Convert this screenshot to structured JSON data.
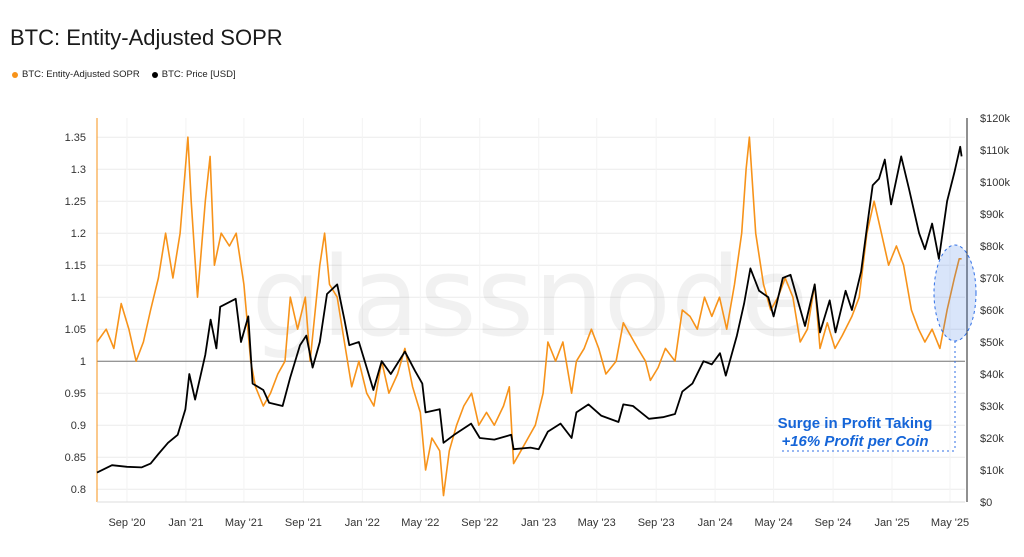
{
  "title": "BTC: Entity-Adjusted SOPR",
  "legend": [
    {
      "label": "BTC: Entity-Adjusted SOPR",
      "color": "#f7931a"
    },
    {
      "label": "BTC: Price [USD]",
      "color": "#000000"
    }
  ],
  "watermark": "glassnode",
  "annotation": {
    "line1": "Surge in Profit Taking",
    "line2": "+16% Profit per Coin",
    "color": "#1565d8"
  },
  "chart_data": {
    "type": "line",
    "xlim": [
      "2020-07-01",
      "2025-06-01"
    ],
    "x_ticks": [
      {
        "date": "2020-09-01",
        "label": "Sep '20"
      },
      {
        "date": "2021-01-01",
        "label": "Jan '21"
      },
      {
        "date": "2021-05-01",
        "label": "May '21"
      },
      {
        "date": "2021-09-01",
        "label": "Sep '21"
      },
      {
        "date": "2022-01-01",
        "label": "Jan '22"
      },
      {
        "date": "2022-05-01",
        "label": "May '22"
      },
      {
        "date": "2022-09-01",
        "label": "Sep '22"
      },
      {
        "date": "2023-01-01",
        "label": "Jan '23"
      },
      {
        "date": "2023-05-01",
        "label": "May '23"
      },
      {
        "date": "2023-09-01",
        "label": "Sep '23"
      },
      {
        "date": "2024-01-01",
        "label": "Jan '24"
      },
      {
        "date": "2024-05-01",
        "label": "May '24"
      },
      {
        "date": "2024-09-01",
        "label": "Sep '24"
      },
      {
        "date": "2025-01-01",
        "label": "Jan '25"
      },
      {
        "date": "2025-05-01",
        "label": "May '25"
      }
    ],
    "y_left": {
      "ylim": [
        0.78,
        1.38
      ],
      "ticks": [
        0.8,
        0.85,
        0.9,
        0.95,
        1,
        1.05,
        1.1,
        1.15,
        1.2,
        1.25,
        1.3,
        1.35
      ],
      "tick_labels": [
        "0.8",
        "0.85",
        "0.9",
        "0.95",
        "1",
        "1.05",
        "1.1",
        "1.15",
        "1.2",
        "1.25",
        "1.3",
        "1.35"
      ],
      "reference_line": 1
    },
    "y_right": {
      "ylim": [
        0,
        120000
      ],
      "ticks": [
        0,
        10000,
        20000,
        30000,
        40000,
        50000,
        60000,
        70000,
        80000,
        90000,
        100000,
        110000,
        120000
      ],
      "tick_labels": [
        "$0",
        "$10k",
        "$20k",
        "$30k",
        "$40k",
        "$50k",
        "$60k",
        "$70k",
        "$80k",
        "$90k",
        "$100k",
        "$110k",
        "$120k"
      ]
    },
    "series": [
      {
        "name": "BTC: Entity-Adjusted SOPR",
        "axis": "left",
        "color": "#f7931a",
        "points": [
          [
            "2020-07-01",
            1.03
          ],
          [
            "2020-07-20",
            1.05
          ],
          [
            "2020-08-05",
            1.02
          ],
          [
            "2020-08-20",
            1.09
          ],
          [
            "2020-09-05",
            1.05
          ],
          [
            "2020-09-20",
            1.0
          ],
          [
            "2020-10-05",
            1.03
          ],
          [
            "2020-10-20",
            1.08
          ],
          [
            "2020-11-05",
            1.13
          ],
          [
            "2020-11-20",
            1.2
          ],
          [
            "2020-12-05",
            1.13
          ],
          [
            "2020-12-20",
            1.2
          ],
          [
            "2021-01-05",
            1.35
          ],
          [
            "2021-01-12",
            1.25
          ],
          [
            "2021-01-25",
            1.1
          ],
          [
            "2021-02-10",
            1.25
          ],
          [
            "2021-02-20",
            1.32
          ],
          [
            "2021-03-01",
            1.15
          ],
          [
            "2021-03-15",
            1.2
          ],
          [
            "2021-04-01",
            1.18
          ],
          [
            "2021-04-15",
            1.2
          ],
          [
            "2021-05-01",
            1.12
          ],
          [
            "2021-05-15",
            1.0
          ],
          [
            "2021-05-25",
            0.96
          ],
          [
            "2021-06-10",
            0.93
          ],
          [
            "2021-06-25",
            0.95
          ],
          [
            "2021-07-10",
            0.98
          ],
          [
            "2021-07-25",
            1.0
          ],
          [
            "2021-08-05",
            1.1
          ],
          [
            "2021-08-20",
            1.05
          ],
          [
            "2021-09-05",
            1.1
          ],
          [
            "2021-09-15",
            1.0
          ],
          [
            "2021-10-05",
            1.15
          ],
          [
            "2021-10-15",
            1.2
          ],
          [
            "2021-10-25",
            1.12
          ],
          [
            "2021-11-10",
            1.1
          ],
          [
            "2021-11-25",
            1.03
          ],
          [
            "2021-12-10",
            0.96
          ],
          [
            "2021-12-25",
            1.0
          ],
          [
            "2022-01-10",
            0.95
          ],
          [
            "2022-01-25",
            0.93
          ],
          [
            "2022-02-10",
            1.0
          ],
          [
            "2022-02-25",
            0.95
          ],
          [
            "2022-03-15",
            0.98
          ],
          [
            "2022-03-30",
            1.02
          ],
          [
            "2022-04-15",
            0.96
          ],
          [
            "2022-05-01",
            0.92
          ],
          [
            "2022-05-12",
            0.83
          ],
          [
            "2022-05-25",
            0.88
          ],
          [
            "2022-06-10",
            0.86
          ],
          [
            "2022-06-18",
            0.79
          ],
          [
            "2022-06-30",
            0.86
          ],
          [
            "2022-07-15",
            0.9
          ],
          [
            "2022-07-30",
            0.93
          ],
          [
            "2022-08-15",
            0.95
          ],
          [
            "2022-08-30",
            0.9
          ],
          [
            "2022-09-15",
            0.92
          ],
          [
            "2022-10-01",
            0.9
          ],
          [
            "2022-10-20",
            0.93
          ],
          [
            "2022-11-01",
            0.96
          ],
          [
            "2022-11-10",
            0.84
          ],
          [
            "2022-11-25",
            0.86
          ],
          [
            "2022-12-10",
            0.88
          ],
          [
            "2022-12-25",
            0.9
          ],
          [
            "2023-01-10",
            0.95
          ],
          [
            "2023-01-20",
            1.03
          ],
          [
            "2023-02-05",
            1.0
          ],
          [
            "2023-02-20",
            1.03
          ],
          [
            "2023-03-10",
            0.95
          ],
          [
            "2023-03-20",
            1.0
          ],
          [
            "2023-04-05",
            1.02
          ],
          [
            "2023-04-20",
            1.05
          ],
          [
            "2023-05-05",
            1.02
          ],
          [
            "2023-05-20",
            0.98
          ],
          [
            "2023-06-10",
            1.0
          ],
          [
            "2023-06-25",
            1.06
          ],
          [
            "2023-07-10",
            1.04
          ],
          [
            "2023-07-25",
            1.02
          ],
          [
            "2023-08-10",
            1.0
          ],
          [
            "2023-08-20",
            0.97
          ],
          [
            "2023-09-05",
            0.99
          ],
          [
            "2023-09-20",
            1.02
          ],
          [
            "2023-10-10",
            1.0
          ],
          [
            "2023-10-25",
            1.08
          ],
          [
            "2023-11-10",
            1.07
          ],
          [
            "2023-11-25",
            1.05
          ],
          [
            "2023-12-10",
            1.1
          ],
          [
            "2023-12-25",
            1.07
          ],
          [
            "2024-01-10",
            1.1
          ],
          [
            "2024-01-25",
            1.05
          ],
          [
            "2024-02-10",
            1.12
          ],
          [
            "2024-02-25",
            1.2
          ],
          [
            "2024-03-05",
            1.3
          ],
          [
            "2024-03-12",
            1.35
          ],
          [
            "2024-03-25",
            1.2
          ],
          [
            "2024-04-10",
            1.12
          ],
          [
            "2024-04-25",
            1.08
          ],
          [
            "2024-05-10",
            1.1
          ],
          [
            "2024-05-25",
            1.13
          ],
          [
            "2024-06-10",
            1.1
          ],
          [
            "2024-06-25",
            1.03
          ],
          [
            "2024-07-10",
            1.05
          ],
          [
            "2024-07-25",
            1.12
          ],
          [
            "2024-08-05",
            1.02
          ],
          [
            "2024-08-20",
            1.06
          ],
          [
            "2024-09-05",
            1.02
          ],
          [
            "2024-09-20",
            1.04
          ],
          [
            "2024-10-10",
            1.07
          ],
          [
            "2024-10-25",
            1.1
          ],
          [
            "2024-11-10",
            1.2
          ],
          [
            "2024-11-25",
            1.25
          ],
          [
            "2024-12-10",
            1.2
          ],
          [
            "2024-12-25",
            1.15
          ],
          [
            "2025-01-10",
            1.18
          ],
          [
            "2025-01-25",
            1.15
          ],
          [
            "2025-02-10",
            1.08
          ],
          [
            "2025-02-25",
            1.05
          ],
          [
            "2025-03-10",
            1.03
          ],
          [
            "2025-03-25",
            1.05
          ],
          [
            "2025-04-10",
            1.02
          ],
          [
            "2025-04-25",
            1.08
          ],
          [
            "2025-05-10",
            1.13
          ],
          [
            "2025-05-20",
            1.16
          ],
          [
            "2025-05-25",
            1.16
          ]
        ]
      },
      {
        "name": "BTC: Price [USD]",
        "axis": "right",
        "color": "#000000",
        "points": [
          [
            "2020-07-01",
            9200
          ],
          [
            "2020-08-01",
            11500
          ],
          [
            "2020-09-01",
            11000
          ],
          [
            "2020-10-01",
            10800
          ],
          [
            "2020-10-20",
            12000
          ],
          [
            "2020-11-05",
            15000
          ],
          [
            "2020-11-25",
            18500
          ],
          [
            "2020-12-15",
            21000
          ],
          [
            "2020-12-31",
            29000
          ],
          [
            "2021-01-08",
            40000
          ],
          [
            "2021-01-20",
            32000
          ],
          [
            "2021-02-10",
            46000
          ],
          [
            "2021-02-21",
            57000
          ],
          [
            "2021-03-05",
            48000
          ],
          [
            "2021-03-13",
            61000
          ],
          [
            "2021-04-14",
            63500
          ],
          [
            "2021-04-25",
            50000
          ],
          [
            "2021-05-10",
            58000
          ],
          [
            "2021-05-19",
            37000
          ],
          [
            "2021-06-10",
            35000
          ],
          [
            "2021-06-22",
            31000
          ],
          [
            "2021-07-20",
            30000
          ],
          [
            "2021-08-05",
            39000
          ],
          [
            "2021-08-25",
            49000
          ],
          [
            "2021-09-07",
            52000
          ],
          [
            "2021-09-20",
            42000
          ],
          [
            "2021-10-05",
            50000
          ],
          [
            "2021-10-20",
            65000
          ],
          [
            "2021-11-10",
            68000
          ],
          [
            "2021-11-25",
            57000
          ],
          [
            "2021-12-05",
            49000
          ],
          [
            "2021-12-25",
            50000
          ],
          [
            "2022-01-10",
            42000
          ],
          [
            "2022-01-24",
            35000
          ],
          [
            "2022-02-10",
            44000
          ],
          [
            "2022-03-01",
            40000
          ],
          [
            "2022-03-30",
            47000
          ],
          [
            "2022-04-20",
            41000
          ],
          [
            "2022-05-05",
            37000
          ],
          [
            "2022-05-12",
            28000
          ],
          [
            "2022-06-10",
            29000
          ],
          [
            "2022-06-18",
            18500
          ],
          [
            "2022-07-10",
            21000
          ],
          [
            "2022-08-14",
            24500
          ],
          [
            "2022-09-01",
            20000
          ],
          [
            "2022-10-01",
            19500
          ],
          [
            "2022-11-05",
            21000
          ],
          [
            "2022-11-10",
            16500
          ],
          [
            "2022-12-15",
            17000
          ],
          [
            "2023-01-01",
            16500
          ],
          [
            "2023-01-20",
            22000
          ],
          [
            "2023-02-15",
            24500
          ],
          [
            "2023-03-10",
            20000
          ],
          [
            "2023-03-20",
            28000
          ],
          [
            "2023-04-14",
            30500
          ],
          [
            "2023-05-10",
            27000
          ],
          [
            "2023-06-15",
            25000
          ],
          [
            "2023-06-25",
            30500
          ],
          [
            "2023-07-15",
            30000
          ],
          [
            "2023-08-17",
            26000
          ],
          [
            "2023-09-15",
            26500
          ],
          [
            "2023-10-10",
            27500
          ],
          [
            "2023-10-25",
            34500
          ],
          [
            "2023-11-15",
            37000
          ],
          [
            "2023-12-08",
            44000
          ],
          [
            "2023-12-25",
            43000
          ],
          [
            "2024-01-11",
            46500
          ],
          [
            "2024-01-23",
            39500
          ],
          [
            "2024-02-15",
            52000
          ],
          [
            "2024-03-01",
            62000
          ],
          [
            "2024-03-14",
            73000
          ],
          [
            "2024-04-01",
            66000
          ],
          [
            "2024-04-20",
            64000
          ],
          [
            "2024-05-01",
            58000
          ],
          [
            "2024-05-20",
            70000
          ],
          [
            "2024-06-05",
            71000
          ],
          [
            "2024-07-05",
            55000
          ],
          [
            "2024-07-25",
            68000
          ],
          [
            "2024-08-05",
            53000
          ],
          [
            "2024-08-25",
            63000
          ],
          [
            "2024-09-06",
            53000
          ],
          [
            "2024-09-27",
            66000
          ],
          [
            "2024-10-10",
            60000
          ],
          [
            "2024-10-29",
            72000
          ],
          [
            "2024-11-12",
            88000
          ],
          [
            "2024-11-22",
            99000
          ],
          [
            "2024-12-05",
            101000
          ],
          [
            "2024-12-17",
            107000
          ],
          [
            "2024-12-30",
            93000
          ],
          [
            "2025-01-20",
            108000
          ],
          [
            "2025-02-05",
            98000
          ],
          [
            "2025-02-26",
            84000
          ],
          [
            "2025-03-10",
            79000
          ],
          [
            "2025-03-25",
            87000
          ],
          [
            "2025-04-08",
            76000
          ],
          [
            "2025-04-25",
            94000
          ],
          [
            "2025-05-10",
            103000
          ],
          [
            "2025-05-22",
            111000
          ],
          [
            "2025-05-25",
            108000
          ]
        ]
      }
    ]
  }
}
